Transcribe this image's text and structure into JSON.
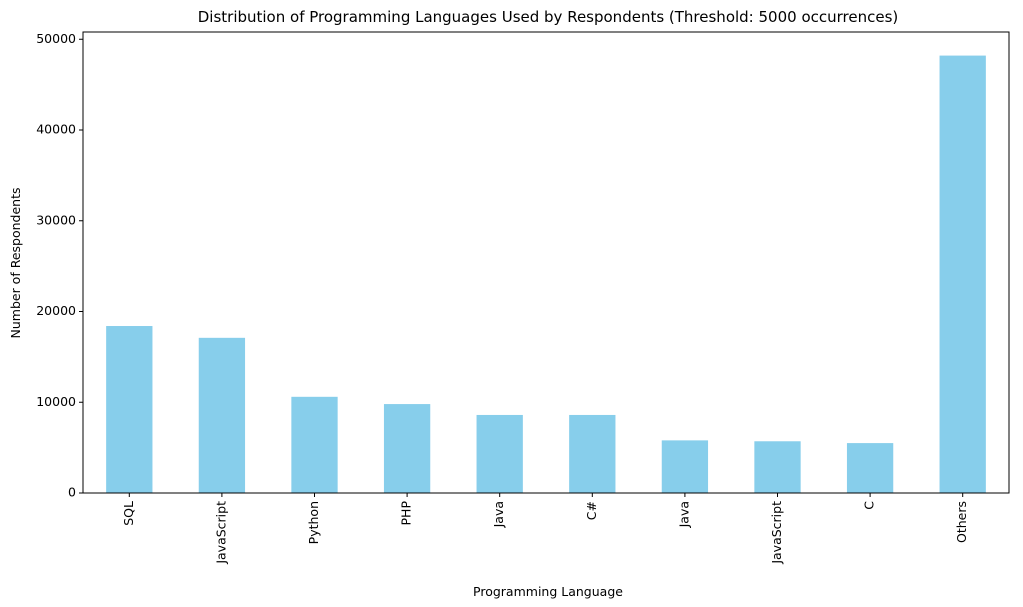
{
  "chart_data": {
    "type": "bar",
    "title": "Distribution of Programming Languages Used by Respondents (Threshold: 5000 occurrences)",
    "xlabel": "Programming Language",
    "ylabel": "Number of Respondents",
    "categories": [
      "SQL",
      "JavaScript",
      "Python",
      "PHP",
      "Java",
      "C#",
      "Java",
      "JavaScript",
      "C",
      "Others"
    ],
    "values": [
      18400,
      17100,
      10600,
      9800,
      8600,
      8600,
      5800,
      5700,
      5500,
      48200
    ],
    "ylim": [
      0,
      50800
    ],
    "yticks": [
      0,
      10000,
      20000,
      30000,
      40000,
      50000
    ],
    "bar_color": "#87ceeb",
    "grid": false,
    "legend": "none"
  }
}
